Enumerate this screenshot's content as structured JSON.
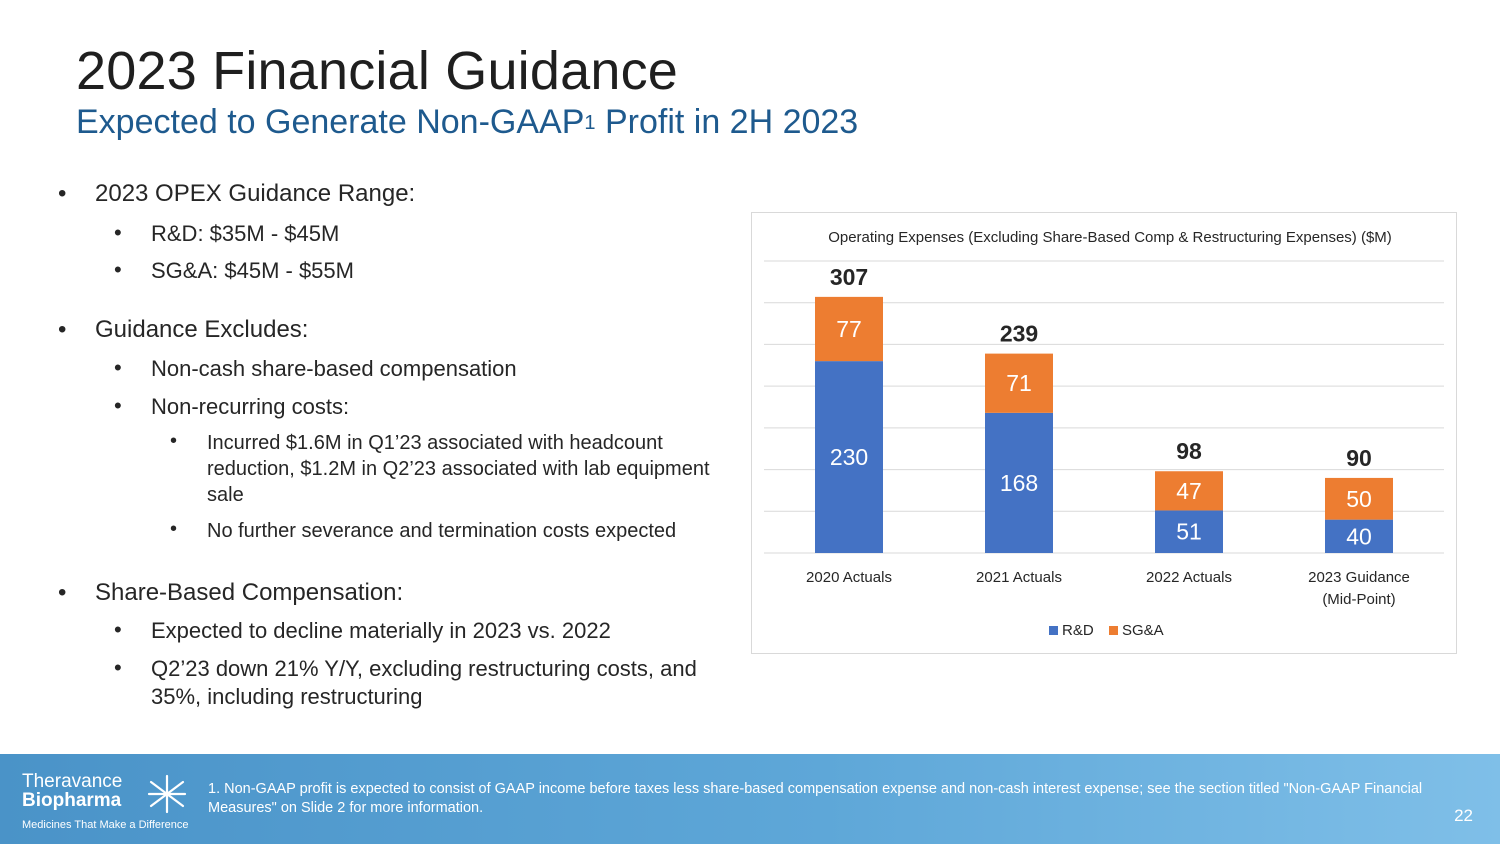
{
  "slide": {
    "title": "2023 Financial Guidance",
    "subtitle_pre": "Expected to Generate Non-GAAP",
    "subtitle_sup": "1",
    "subtitle_post": " Profit in 2H 2023",
    "page_number": "22"
  },
  "bullets": {
    "b1": "2023 OPEX Guidance Range:",
    "b1_1": "R&D: $35M - $45M",
    "b1_2": "SG&A: $45M - $55M",
    "b2": "Guidance Excludes:",
    "b2_1": "Non-cash share-based compensation",
    "b2_2": "Non-recurring costs:",
    "b2_2_1": "Incurred $1.6M in Q1’23 associated with headcount reduction, $1.2M in Q2’23 associated with lab equipment sale",
    "b2_2_2": "No further severance and termination costs expected",
    "b3": "Share-Based Compensation:",
    "b3_1": "Expected to decline materially in 2023 vs. 2022",
    "b3_2": "Q2’23 down 21% Y/Y, excluding restructuring costs, and 35%, including restructuring"
  },
  "footer": {
    "logo_line1": "Theravance",
    "logo_line2": "Biopharma",
    "logo_tagline": "Medicines That Make a Difference",
    "footnote": "1. Non-GAAP profit is expected to consist of GAAP income before taxes less share-based compensation expense and non-cash interest expense; see the section titled \"Non-GAAP Financial Measures\" on Slide 2 for more information."
  },
  "colors": {
    "rd": "#4472c4",
    "sga": "#ed7d31",
    "grid": "#d9d9d9",
    "subtitle": "#1e5a8e"
  },
  "chart_data": {
    "type": "bar",
    "stacked": true,
    "title": "Operating Expenses (Excluding Share-Based Comp & Restructuring Expenses) ($M)",
    "categories": [
      [
        "2020 Actuals"
      ],
      [
        "2021 Actuals"
      ],
      [
        "2022 Actuals"
      ],
      [
        "2023 Guidance",
        "(Mid-Point)"
      ]
    ],
    "series": [
      {
        "name": "R&D",
        "values": [
          230,
          168,
          51,
          40
        ]
      },
      {
        "name": "SG&A",
        "values": [
          77,
          71,
          47,
          50
        ]
      }
    ],
    "totals": [
      307,
      239,
      98,
      90
    ],
    "ylim": [
      0,
      350
    ],
    "grid": true,
    "legend": "bottom"
  }
}
